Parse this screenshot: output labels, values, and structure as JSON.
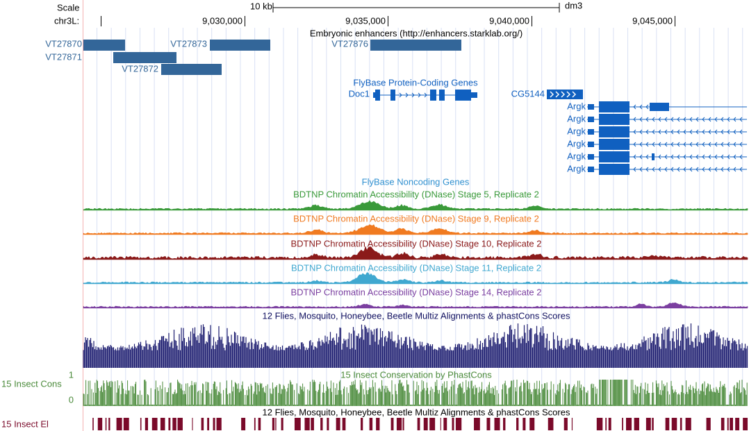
{
  "scale": {
    "label": "Scale",
    "span": "10 kb",
    "assembly": "dm3"
  },
  "position": {
    "chrom": "chr3L:",
    "ticks": [
      "9,030,000",
      "9,035,000",
      "9,040,000",
      "9,045,000"
    ]
  },
  "enhancers": {
    "title": "Embryonic enhancers (http://enhancers.starklab.org/)",
    "items": [
      "VT27870",
      "VT27871",
      "VT27873",
      "VT27872",
      "VT27876"
    ]
  },
  "genes": {
    "title": "FlyBase Protein-Coding Genes",
    "labels": [
      "Doc1",
      "CG5144",
      "Argk",
      "Argk",
      "Argk",
      "Argk",
      "Argk",
      "Argk"
    ]
  },
  "noncoding": {
    "title": "FlyBase Noncoding Genes"
  },
  "dnase": {
    "titles": [
      "BDTNP Chromatin Accessibility (DNase) Stage 5, Replicate 2",
      "BDTNP Chromatin Accessibility (DNase) Stage 9, Replicate 2",
      "BDTNP Chromatin Accessibility (DNase) Stage 10, Replicate 2",
      "BDTNP Chromatin Accessibility (DNase) Stage 11, Replicate 2",
      "BDTNP Chromatin Accessibility (DNase) Stage 14, Replicate 2"
    ]
  },
  "multiz": {
    "title": "12 Flies, Mosquito, Honeybee, Beetle Multiz Alignments & phastCons Scores"
  },
  "conservation": {
    "title": "15 Insect Conservation by PhastCons",
    "side_label": "15 Insect Cons",
    "axis_top": "1",
    "axis_bottom": "0"
  },
  "elements": {
    "title": "12 Flies, Mosquito, Honeybee, Beetle Multiz Alignments & phastCons Scores",
    "side_label": "15 Insect El"
  }
}
